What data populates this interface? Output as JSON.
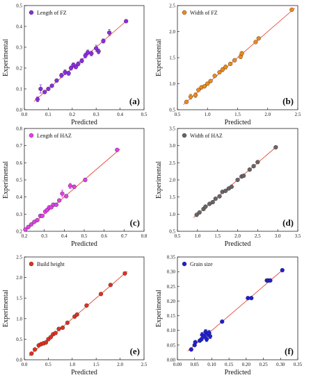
{
  "chart_data": [
    {
      "type": "scatter",
      "panel_label": "(a)",
      "legend": "Length of FZ",
      "color": "#8a2be2",
      "xlabel": "Predicted",
      "ylabel": "Experimental",
      "xlim": [
        0.0,
        0.5
      ],
      "ylim": [
        0.0,
        0.5
      ],
      "xticks": [
        "0.0",
        "0.1",
        "0.2",
        "0.3",
        "0.4",
        "0.5"
      ],
      "yticks": [
        "0.0",
        "0.1",
        "0.2",
        "0.3",
        "0.4",
        "0.5"
      ],
      "grid": false,
      "legend_position": "top-left",
      "fit_line": [
        [
          0.04,
          0.04
        ],
        [
          0.43,
          0.43
        ]
      ],
      "points": [
        {
          "x": 0.055,
          "y": 0.05,
          "err": 0.012
        },
        {
          "x": 0.068,
          "y": 0.1,
          "err": 0.02
        },
        {
          "x": 0.085,
          "y": 0.085,
          "err": 0.008
        },
        {
          "x": 0.1,
          "y": 0.1,
          "err": 0.006
        },
        {
          "x": 0.115,
          "y": 0.115,
          "err": 0.006
        },
        {
          "x": 0.135,
          "y": 0.14,
          "err": 0.006
        },
        {
          "x": 0.155,
          "y": 0.165,
          "err": 0.01
        },
        {
          "x": 0.17,
          "y": 0.18,
          "err": 0.012
        },
        {
          "x": 0.185,
          "y": 0.175,
          "err": 0.01
        },
        {
          "x": 0.195,
          "y": 0.2,
          "err": 0.01
        },
        {
          "x": 0.205,
          "y": 0.215,
          "err": 0.01
        },
        {
          "x": 0.215,
          "y": 0.205,
          "err": 0.008
        },
        {
          "x": 0.225,
          "y": 0.22,
          "err": 0.01
        },
        {
          "x": 0.24,
          "y": 0.235,
          "err": 0.01
        },
        {
          "x": 0.255,
          "y": 0.26,
          "err": 0.012
        },
        {
          "x": 0.265,
          "y": 0.275,
          "err": 0.012
        },
        {
          "x": 0.28,
          "y": 0.27,
          "err": 0.012
        },
        {
          "x": 0.3,
          "y": 0.295,
          "err": 0.015
        },
        {
          "x": 0.31,
          "y": 0.28,
          "err": 0.012
        },
        {
          "x": 0.33,
          "y": 0.33,
          "err": 0.01
        },
        {
          "x": 0.355,
          "y": 0.37,
          "err": 0.015
        },
        {
          "x": 0.425,
          "y": 0.425,
          "err": 0.006
        }
      ]
    },
    {
      "type": "scatter",
      "panel_label": "(b)",
      "legend": "Width of FZ",
      "color": "#ee8a1a",
      "xlabel": "Predicted",
      "ylabel": "Experimental",
      "xlim": [
        0.5,
        2.5
      ],
      "ylim": [
        0.5,
        2.5
      ],
      "xticks": [
        "0.5",
        "1.0",
        "1.5",
        "2.0",
        "2.5"
      ],
      "yticks": [
        "0.5",
        "1.0",
        "1.5",
        "2.0",
        "2.5"
      ],
      "grid": false,
      "legend_position": "top-left",
      "fit_line": [
        [
          0.6,
          0.6
        ],
        [
          2.45,
          2.45
        ]
      ],
      "points": [
        {
          "x": 0.65,
          "y": 0.65,
          "err": 0.02
        },
        {
          "x": 0.72,
          "y": 0.75,
          "err": 0.05
        },
        {
          "x": 0.8,
          "y": 0.78,
          "err": 0.05
        },
        {
          "x": 0.85,
          "y": 0.88,
          "err": 0.02
        },
        {
          "x": 0.9,
          "y": 0.93,
          "err": 0.02
        },
        {
          "x": 0.95,
          "y": 0.95,
          "err": 0.02
        },
        {
          "x": 1.0,
          "y": 1.0,
          "err": 0.02
        },
        {
          "x": 1.05,
          "y": 1.05,
          "err": 0.02
        },
        {
          "x": 1.12,
          "y": 1.15,
          "err": 0.02
        },
        {
          "x": 1.2,
          "y": 1.22,
          "err": 0.02
        },
        {
          "x": 1.25,
          "y": 1.27,
          "err": 0.04
        },
        {
          "x": 1.3,
          "y": 1.32,
          "err": 0.04
        },
        {
          "x": 1.38,
          "y": 1.38,
          "err": 0.02
        },
        {
          "x": 1.45,
          "y": 1.45,
          "err": 0.02
        },
        {
          "x": 1.55,
          "y": 1.52,
          "err": 0.04
        },
        {
          "x": 1.57,
          "y": 1.58,
          "err": 0.04
        },
        {
          "x": 1.8,
          "y": 1.8,
          "err": 0.02
        },
        {
          "x": 1.85,
          "y": 1.87,
          "err": 0.02
        },
        {
          "x": 2.4,
          "y": 2.42,
          "err": 0.02
        }
      ]
    },
    {
      "type": "scatter",
      "panel_label": "(c)",
      "legend": "Length of HAZ",
      "color": "#e23fe6",
      "xlabel": "Predicted",
      "ylabel": "Experimental",
      "xlim": [
        0.2,
        0.8
      ],
      "ylim": [
        0.2,
        0.8
      ],
      "xticks": [
        "0.2",
        "0.3",
        "0.4",
        "0.5",
        "0.6",
        "0.7",
        "0.8"
      ],
      "yticks": [
        "0.2",
        "0.3",
        "0.4",
        "0.5",
        "0.6",
        "0.7",
        "0.8"
      ],
      "grid": false,
      "legend_position": "top-left",
      "fit_line": [
        [
          0.2,
          0.2
        ],
        [
          0.68,
          0.68
        ]
      ],
      "points": [
        {
          "x": 0.205,
          "y": 0.21,
          "err": 0.005
        },
        {
          "x": 0.22,
          "y": 0.225,
          "err": 0.005
        },
        {
          "x": 0.235,
          "y": 0.24,
          "err": 0.005
        },
        {
          "x": 0.25,
          "y": 0.255,
          "err": 0.005
        },
        {
          "x": 0.265,
          "y": 0.265,
          "err": 0.005
        },
        {
          "x": 0.28,
          "y": 0.29,
          "err": 0.008
        },
        {
          "x": 0.29,
          "y": 0.29,
          "err": 0.005
        },
        {
          "x": 0.305,
          "y": 0.315,
          "err": 0.008
        },
        {
          "x": 0.315,
          "y": 0.325,
          "err": 0.008
        },
        {
          "x": 0.325,
          "y": 0.34,
          "err": 0.008
        },
        {
          "x": 0.335,
          "y": 0.34,
          "err": 0.008
        },
        {
          "x": 0.345,
          "y": 0.355,
          "err": 0.01
        },
        {
          "x": 0.36,
          "y": 0.355,
          "err": 0.008
        },
        {
          "x": 0.375,
          "y": 0.38,
          "err": 0.008
        },
        {
          "x": 0.39,
          "y": 0.42,
          "err": 0.02
        },
        {
          "x": 0.41,
          "y": 0.405,
          "err": 0.01
        },
        {
          "x": 0.43,
          "y": 0.465,
          "err": 0.015
        },
        {
          "x": 0.45,
          "y": 0.46,
          "err": 0.01
        },
        {
          "x": 0.505,
          "y": 0.5,
          "err": 0.01
        },
        {
          "x": 0.665,
          "y": 0.675,
          "err": 0.005
        }
      ]
    },
    {
      "type": "scatter",
      "panel_label": "(d)",
      "legend": "Width of HAZ",
      "color": "#6b6466",
      "xlabel": "Predicted",
      "ylabel": "Experimental",
      "xlim": [
        0.5,
        3.5
      ],
      "ylim": [
        0.5,
        3.5
      ],
      "xticks": [
        "0.5",
        "1.0",
        "1.5",
        "2.0",
        "2.5",
        "3.0",
        "3.5"
      ],
      "yticks": [
        "0.5",
        "1.0",
        "1.5",
        "2.0",
        "2.5",
        "3.0",
        "3.5"
      ],
      "grid": false,
      "legend_position": "top-left",
      "fit_line": [
        [
          0.9,
          0.9
        ],
        [
          3.0,
          3.0
        ]
      ],
      "points": [
        {
          "x": 0.98,
          "y": 0.98,
          "err": 0.02
        },
        {
          "x": 1.05,
          "y": 1.05,
          "err": 0.02
        },
        {
          "x": 1.15,
          "y": 1.15,
          "err": 0.02
        },
        {
          "x": 1.2,
          "y": 1.22,
          "err": 0.02
        },
        {
          "x": 1.3,
          "y": 1.3,
          "err": 0.02
        },
        {
          "x": 1.38,
          "y": 1.35,
          "err": 0.02
        },
        {
          "x": 1.45,
          "y": 1.45,
          "err": 0.02
        },
        {
          "x": 1.55,
          "y": 1.52,
          "err": 0.02
        },
        {
          "x": 1.62,
          "y": 1.65,
          "err": 0.02
        },
        {
          "x": 1.7,
          "y": 1.68,
          "err": 0.02
        },
        {
          "x": 1.78,
          "y": 1.75,
          "err": 0.02
        },
        {
          "x": 1.85,
          "y": 1.8,
          "err": 0.02
        },
        {
          "x": 2.0,
          "y": 2.0,
          "err": 0.02
        },
        {
          "x": 2.1,
          "y": 2.1,
          "err": 0.02
        },
        {
          "x": 2.15,
          "y": 2.12,
          "err": 0.02
        },
        {
          "x": 2.3,
          "y": 2.3,
          "err": 0.02
        },
        {
          "x": 2.4,
          "y": 2.4,
          "err": 0.02
        },
        {
          "x": 2.5,
          "y": 2.52,
          "err": 0.02
        },
        {
          "x": 2.95,
          "y": 2.95,
          "err": 0.02
        }
      ]
    },
    {
      "type": "scatter",
      "panel_label": "(e)",
      "legend": "Build height",
      "color": "#e0301e",
      "xlabel": "Predicted",
      "ylabel": "Experimental",
      "xlim": [
        0.0,
        2.5
      ],
      "ylim": [
        0.0,
        2.5
      ],
      "xticks": [
        "0.0",
        "0.5",
        "1.0",
        "1.5",
        "2.0",
        "2.5"
      ],
      "yticks": [
        "0.0",
        "0.5",
        "1.0",
        "1.5",
        "2.0",
        "2.5"
      ],
      "grid": false,
      "legend_position": "top-left",
      "fit_line": [
        [
          0.1,
          0.1
        ],
        [
          2.15,
          2.15
        ]
      ],
      "points": [
        {
          "x": 0.15,
          "y": 0.15,
          "err": 0.02
        },
        {
          "x": 0.22,
          "y": 0.25,
          "err": 0.03
        },
        {
          "x": 0.3,
          "y": 0.35,
          "err": 0.03
        },
        {
          "x": 0.35,
          "y": 0.38,
          "err": 0.04
        },
        {
          "x": 0.4,
          "y": 0.4,
          "err": 0.04
        },
        {
          "x": 0.45,
          "y": 0.42,
          "err": 0.04
        },
        {
          "x": 0.5,
          "y": 0.5,
          "err": 0.04
        },
        {
          "x": 0.55,
          "y": 0.55,
          "err": 0.03
        },
        {
          "x": 0.6,
          "y": 0.62,
          "err": 0.03
        },
        {
          "x": 0.65,
          "y": 0.65,
          "err": 0.03
        },
        {
          "x": 0.72,
          "y": 0.75,
          "err": 0.04
        },
        {
          "x": 0.8,
          "y": 0.78,
          "err": 0.03
        },
        {
          "x": 0.9,
          "y": 0.9,
          "err": 0.02
        },
        {
          "x": 1.05,
          "y": 1.05,
          "err": 0.02
        },
        {
          "x": 1.1,
          "y": 1.1,
          "err": 0.02
        },
        {
          "x": 1.3,
          "y": 1.32,
          "err": 0.02
        },
        {
          "x": 1.6,
          "y": 1.6,
          "err": 0.02
        },
        {
          "x": 1.8,
          "y": 1.82,
          "err": 0.02
        },
        {
          "x": 2.1,
          "y": 2.1,
          "err": 0.02
        }
      ]
    },
    {
      "type": "scatter",
      "panel_label": "(f)",
      "legend": "Grain size",
      "color": "#1f1fd6",
      "xlabel": "Predicted",
      "ylabel": "Experimental",
      "xlim": [
        0.0,
        0.35
      ],
      "ylim": [
        0.0,
        0.35
      ],
      "xticks": [
        "0.00",
        "0.05",
        "0.10",
        "0.15",
        "0.20",
        "0.25",
        "0.30",
        "0.35"
      ],
      "yticks": [
        "0.00",
        "0.05",
        "0.10",
        "0.15",
        "0.20",
        "0.25",
        "0.30",
        "0.35"
      ],
      "grid": false,
      "legend_position": "top-left",
      "fit_line": [
        [
          0.03,
          0.03
        ],
        [
          0.31,
          0.31
        ]
      ],
      "points": [
        {
          "x": 0.04,
          "y": 0.035,
          "err": 0.003
        },
        {
          "x": 0.05,
          "y": 0.05,
          "err": 0.004
        },
        {
          "x": 0.052,
          "y": 0.06,
          "err": 0.004
        },
        {
          "x": 0.065,
          "y": 0.065,
          "err": 0.004
        },
        {
          "x": 0.07,
          "y": 0.07,
          "err": 0.004
        },
        {
          "x": 0.072,
          "y": 0.085,
          "err": 0.008
        },
        {
          "x": 0.078,
          "y": 0.08,
          "err": 0.008
        },
        {
          "x": 0.082,
          "y": 0.095,
          "err": 0.008
        },
        {
          "x": 0.085,
          "y": 0.07,
          "err": 0.008
        },
        {
          "x": 0.088,
          "y": 0.088,
          "err": 0.008
        },
        {
          "x": 0.092,
          "y": 0.092,
          "err": 0.008
        },
        {
          "x": 0.095,
          "y": 0.08,
          "err": 0.008
        },
        {
          "x": 0.13,
          "y": 0.13,
          "err": 0.003
        },
        {
          "x": 0.205,
          "y": 0.21,
          "err": 0.003
        },
        {
          "x": 0.215,
          "y": 0.21,
          "err": 0.003
        },
        {
          "x": 0.26,
          "y": 0.27,
          "err": 0.003
        },
        {
          "x": 0.265,
          "y": 0.27,
          "err": 0.003
        },
        {
          "x": 0.27,
          "y": 0.27,
          "err": 0.003
        },
        {
          "x": 0.305,
          "y": 0.305,
          "err": 0.003
        }
      ]
    }
  ]
}
